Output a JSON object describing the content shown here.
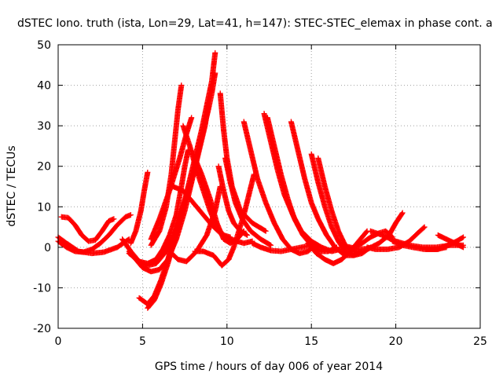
{
  "chart_data": {
    "type": "scatter",
    "title": "dSTEC Iono. truth (ista, Lon=29, Lat=41, h=147): STEC-STEC_elemax in phase cont. a",
    "xlabel": "GPS time / hours of day 006 of year 2014",
    "ylabel": "dSTEC  / TECUs",
    "xlim": [
      0,
      25
    ],
    "ylim": [
      -20,
      50
    ],
    "xticks": [
      "0",
      "5",
      "10",
      "15",
      "20",
      "25"
    ],
    "yticks": [
      "-20",
      "-10",
      "0",
      "10",
      "20",
      "30",
      "40",
      "50"
    ],
    "grid": true,
    "marker": "+",
    "color": "#ff0000",
    "series": [
      {
        "points": [
          [
            0,
            1.5
          ],
          [
            0.5,
            0
          ],
          [
            1,
            -1
          ],
          [
            1.5,
            -1.2
          ],
          [
            2,
            -0.5
          ],
          [
            2.5,
            1
          ],
          [
            3,
            3
          ],
          [
            3.5,
            5.5
          ],
          [
            4,
            7.5
          ],
          [
            4.3,
            8
          ]
        ]
      },
      {
        "points": [
          [
            0.2,
            7.5
          ],
          [
            0.6,
            7.3
          ],
          [
            1,
            5.5
          ],
          [
            1.4,
            3
          ],
          [
            1.8,
            1.5
          ],
          [
            2.2,
            1.8
          ],
          [
            2.6,
            4
          ],
          [
            3,
            6.5
          ],
          [
            3.3,
            7
          ]
        ]
      },
      {
        "points": [
          [
            0,
            2.5
          ],
          [
            0.5,
            1
          ],
          [
            1.2,
            -1
          ],
          [
            2,
            -1.5
          ],
          [
            2.7,
            -1.2
          ],
          [
            3.5,
            0
          ],
          [
            4.2,
            2
          ]
        ]
      },
      {
        "points": [
          [
            3.8,
            2
          ],
          [
            4.3,
            -1
          ],
          [
            4.8,
            -3.5
          ],
          [
            5.3,
            -4
          ],
          [
            5.8,
            -3
          ],
          [
            6.2,
            -0.5
          ],
          [
            6.6,
            3
          ],
          [
            7,
            8
          ],
          [
            7.3,
            15
          ],
          [
            7.5,
            20
          ],
          [
            7.7,
            24
          ]
        ]
      },
      {
        "points": [
          [
            4.2,
            -1.5
          ],
          [
            4.8,
            -3.5
          ],
          [
            5.3,
            -4.5
          ],
          [
            5.8,
            -4
          ],
          [
            6.3,
            -1.5
          ],
          [
            6.8,
            2.5
          ],
          [
            7.3,
            8
          ],
          [
            7.8,
            15
          ],
          [
            8.2,
            22
          ],
          [
            8.6,
            29
          ],
          [
            8.9,
            34
          ],
          [
            9.1,
            38
          ],
          [
            9.3,
            43
          ]
        ]
      },
      {
        "points": [
          [
            4.3,
            1
          ],
          [
            4.6,
            4
          ],
          [
            4.9,
            9
          ],
          [
            5.1,
            14
          ],
          [
            5.3,
            18.5
          ]
        ]
      },
      {
        "points": [
          [
            4.2,
            -1
          ],
          [
            4.6,
            -3
          ],
          [
            5,
            -5
          ],
          [
            5.5,
            -6
          ],
          [
            6,
            -5.5
          ],
          [
            6.5,
            -3
          ],
          [
            7,
            2
          ],
          [
            7.5,
            9
          ],
          [
            7.9,
            16
          ],
          [
            8.3,
            23
          ],
          [
            8.7,
            30
          ],
          [
            8.9,
            35
          ]
        ]
      },
      {
        "points": [
          [
            4.8,
            -12.5
          ],
          [
            5.3,
            -14
          ],
          [
            5.7,
            -12
          ],
          [
            6.1,
            -8
          ],
          [
            6.5,
            -3
          ],
          [
            6.9,
            3
          ],
          [
            7.3,
            9
          ],
          [
            7.6,
            13
          ]
        ]
      },
      {
        "points": [
          [
            5.3,
            -15
          ],
          [
            5.7,
            -13
          ],
          [
            6.1,
            -9
          ],
          [
            6.5,
            -4
          ],
          [
            6.9,
            2
          ],
          [
            7.3,
            8
          ],
          [
            7.7,
            15
          ],
          [
            8.1,
            22
          ],
          [
            8.5,
            29
          ],
          [
            8.8,
            35
          ],
          [
            9.1,
            41
          ],
          [
            9.3,
            48
          ]
        ]
      },
      {
        "points": [
          [
            5.5,
            0.5
          ],
          [
            6,
            4
          ],
          [
            6.4,
            10
          ],
          [
            6.7,
            18
          ],
          [
            6.9,
            26
          ],
          [
            7.1,
            34
          ],
          [
            7.3,
            40
          ]
        ]
      },
      {
        "points": [
          [
            5.5,
            2
          ],
          [
            6,
            7
          ],
          [
            6.6,
            14
          ],
          [
            7.2,
            22
          ],
          [
            7.6,
            28
          ],
          [
            7.9,
            32
          ]
        ]
      },
      {
        "points": [
          [
            6.6,
            -1
          ],
          [
            7.1,
            -3
          ],
          [
            7.6,
            -3.5
          ],
          [
            8.2,
            -1
          ],
          [
            8.8,
            3
          ],
          [
            9.3,
            9
          ],
          [
            9.6,
            15
          ]
        ]
      },
      {
        "points": [
          [
            6.8,
            15
          ],
          [
            7.4,
            14
          ],
          [
            8,
            11
          ],
          [
            8.6,
            8
          ],
          [
            9.1,
            5.5
          ],
          [
            9.6,
            3.5
          ],
          [
            10.2,
            2
          ],
          [
            11,
            1
          ],
          [
            11.5,
            1.5
          ]
        ]
      },
      {
        "points": [
          [
            7.4,
            30
          ],
          [
            7.8,
            25
          ],
          [
            8.2,
            19
          ],
          [
            8.6,
            14
          ],
          [
            9,
            9
          ],
          [
            9.4,
            5
          ],
          [
            9.8,
            3
          ],
          [
            10.2,
            2.5
          ]
        ]
      },
      {
        "points": [
          [
            8,
            23
          ],
          [
            8.5,
            18
          ],
          [
            9,
            12
          ],
          [
            9.4,
            6
          ],
          [
            9.8,
            2
          ],
          [
            10.2,
            1
          ],
          [
            10.6,
            2
          ],
          [
            11,
            4
          ]
        ]
      },
      {
        "points": [
          [
            8.1,
            -1
          ],
          [
            8.6,
            -1
          ],
          [
            9.2,
            -2
          ],
          [
            9.7,
            -4.5
          ],
          [
            10.1,
            -3
          ],
          [
            10.4,
            0
          ],
          [
            10.7,
            4
          ],
          [
            11,
            8
          ],
          [
            11.3,
            13
          ],
          [
            11.6,
            18
          ]
        ]
      },
      {
        "points": [
          [
            9.6,
            38
          ],
          [
            9.8,
            29
          ],
          [
            10,
            22
          ],
          [
            10.3,
            15
          ],
          [
            10.8,
            9
          ],
          [
            11.5,
            6
          ],
          [
            12.3,
            4
          ]
        ]
      },
      {
        "points": [
          [
            9.5,
            20
          ],
          [
            9.8,
            14
          ],
          [
            10.1,
            9
          ],
          [
            10.4,
            6
          ],
          [
            10.8,
            4
          ],
          [
            11.2,
            3
          ]
        ]
      },
      {
        "points": [
          [
            9.9,
            22
          ],
          [
            10.2,
            16
          ],
          [
            10.5,
            11
          ],
          [
            10.9,
            7
          ],
          [
            11.4,
            4
          ],
          [
            12,
            2
          ],
          [
            12.6,
            0.5
          ]
        ]
      },
      {
        "points": [
          [
            11,
            31
          ],
          [
            11.4,
            24
          ],
          [
            11.8,
            17
          ],
          [
            12.3,
            11
          ],
          [
            12.8,
            6
          ],
          [
            13.3,
            2
          ],
          [
            13.8,
            -0.5
          ],
          [
            14.3,
            -1.5
          ],
          [
            14.8,
            -1
          ],
          [
            15.2,
            0.5
          ]
        ]
      },
      {
        "points": [
          [
            12.2,
            33
          ],
          [
            12.6,
            26
          ],
          [
            13,
            19
          ],
          [
            13.4,
            13
          ],
          [
            13.9,
            8
          ],
          [
            14.4,
            4
          ],
          [
            15,
            1.5
          ],
          [
            15.6,
            0
          ],
          [
            16.2,
            -1
          ],
          [
            16.7,
            -0.5
          ]
        ]
      },
      {
        "points": [
          [
            12.4,
            32
          ],
          [
            12.8,
            25
          ],
          [
            13.2,
            18
          ],
          [
            13.6,
            12
          ],
          [
            14,
            7
          ],
          [
            14.5,
            3
          ],
          [
            15,
            0.5
          ],
          [
            15.5,
            -1
          ],
          [
            16,
            -1
          ],
          [
            16.5,
            0
          ]
        ]
      },
      {
        "points": [
          [
            11.5,
            1
          ],
          [
            12,
            0
          ],
          [
            12.6,
            -0.8
          ],
          [
            13.2,
            -1
          ],
          [
            13.8,
            -0.5
          ],
          [
            14.4,
            0
          ],
          [
            15,
            0.5
          ]
        ]
      },
      {
        "points": [
          [
            13.8,
            31
          ],
          [
            14.2,
            24
          ],
          [
            14.6,
            17
          ],
          [
            15,
            11
          ],
          [
            15.4,
            7
          ],
          [
            15.9,
            3
          ],
          [
            16.4,
            0
          ],
          [
            17,
            -2
          ],
          [
            17.5,
            -2
          ],
          [
            18,
            -1
          ]
        ]
      },
      {
        "points": [
          [
            15,
            23
          ],
          [
            15.4,
            16
          ],
          [
            15.8,
            10
          ],
          [
            16.2,
            5
          ],
          [
            16.6,
            1.5
          ],
          [
            17,
            -1
          ],
          [
            17.5,
            -2
          ],
          [
            18,
            -1.5
          ],
          [
            18.5,
            0
          ]
        ]
      },
      {
        "points": [
          [
            15.4,
            22
          ],
          [
            15.8,
            15
          ],
          [
            16.2,
            9
          ],
          [
            16.6,
            4
          ],
          [
            17,
            0.5
          ],
          [
            17.4,
            -1
          ],
          [
            17.8,
            -1.2
          ]
        ]
      },
      {
        "points": [
          [
            14.8,
            1
          ],
          [
            15.3,
            -1.5
          ],
          [
            15.8,
            -3
          ],
          [
            16.3,
            -4
          ],
          [
            16.8,
            -3
          ],
          [
            17.3,
            -1
          ],
          [
            17.8,
            1.5
          ],
          [
            18.3,
            4
          ]
        ]
      },
      {
        "points": [
          [
            16.8,
            0.5
          ],
          [
            17.3,
            0
          ],
          [
            17.8,
            -0.5
          ],
          [
            18.4,
            -0.3
          ],
          [
            19,
            1
          ],
          [
            19.6,
            3
          ],
          [
            20,
            6
          ],
          [
            20.4,
            8.5
          ]
        ]
      },
      {
        "points": [
          [
            17.5,
            0
          ],
          [
            18,
            1
          ],
          [
            18.5,
            2.5
          ],
          [
            19,
            3.5
          ],
          [
            19.4,
            4
          ],
          [
            19.8,
            2.5
          ]
        ]
      },
      {
        "points": [
          [
            18.3,
            0
          ],
          [
            18.8,
            -0.5
          ],
          [
            19.5,
            -0.5
          ],
          [
            20.2,
            0
          ],
          [
            20.8,
            1.5
          ],
          [
            21.3,
            3.5
          ],
          [
            21.7,
            5
          ]
        ]
      },
      {
        "points": [
          [
            18.5,
            4
          ],
          [
            19.2,
            3
          ],
          [
            20,
            1.5
          ],
          [
            20.8,
            0.5
          ],
          [
            21.6,
            0
          ],
          [
            22.4,
            0
          ],
          [
            23.2,
            0.5
          ],
          [
            24,
            0.5
          ]
        ]
      },
      {
        "points": [
          [
            19.8,
            1.5
          ],
          [
            20.4,
            0.5
          ],
          [
            21,
            0
          ],
          [
            21.7,
            -0.5
          ],
          [
            22.4,
            -0.5
          ],
          [
            23,
            0
          ]
        ]
      },
      {
        "points": [
          [
            22.5,
            3
          ],
          [
            23,
            2
          ],
          [
            23.5,
            1
          ],
          [
            24,
            0
          ]
        ]
      },
      {
        "points": [
          [
            21.8,
            -0.5
          ],
          [
            22.5,
            -0.5
          ],
          [
            23.1,
            0.5
          ],
          [
            23.6,
            1.5
          ],
          [
            24,
            2.5
          ]
        ]
      }
    ]
  }
}
